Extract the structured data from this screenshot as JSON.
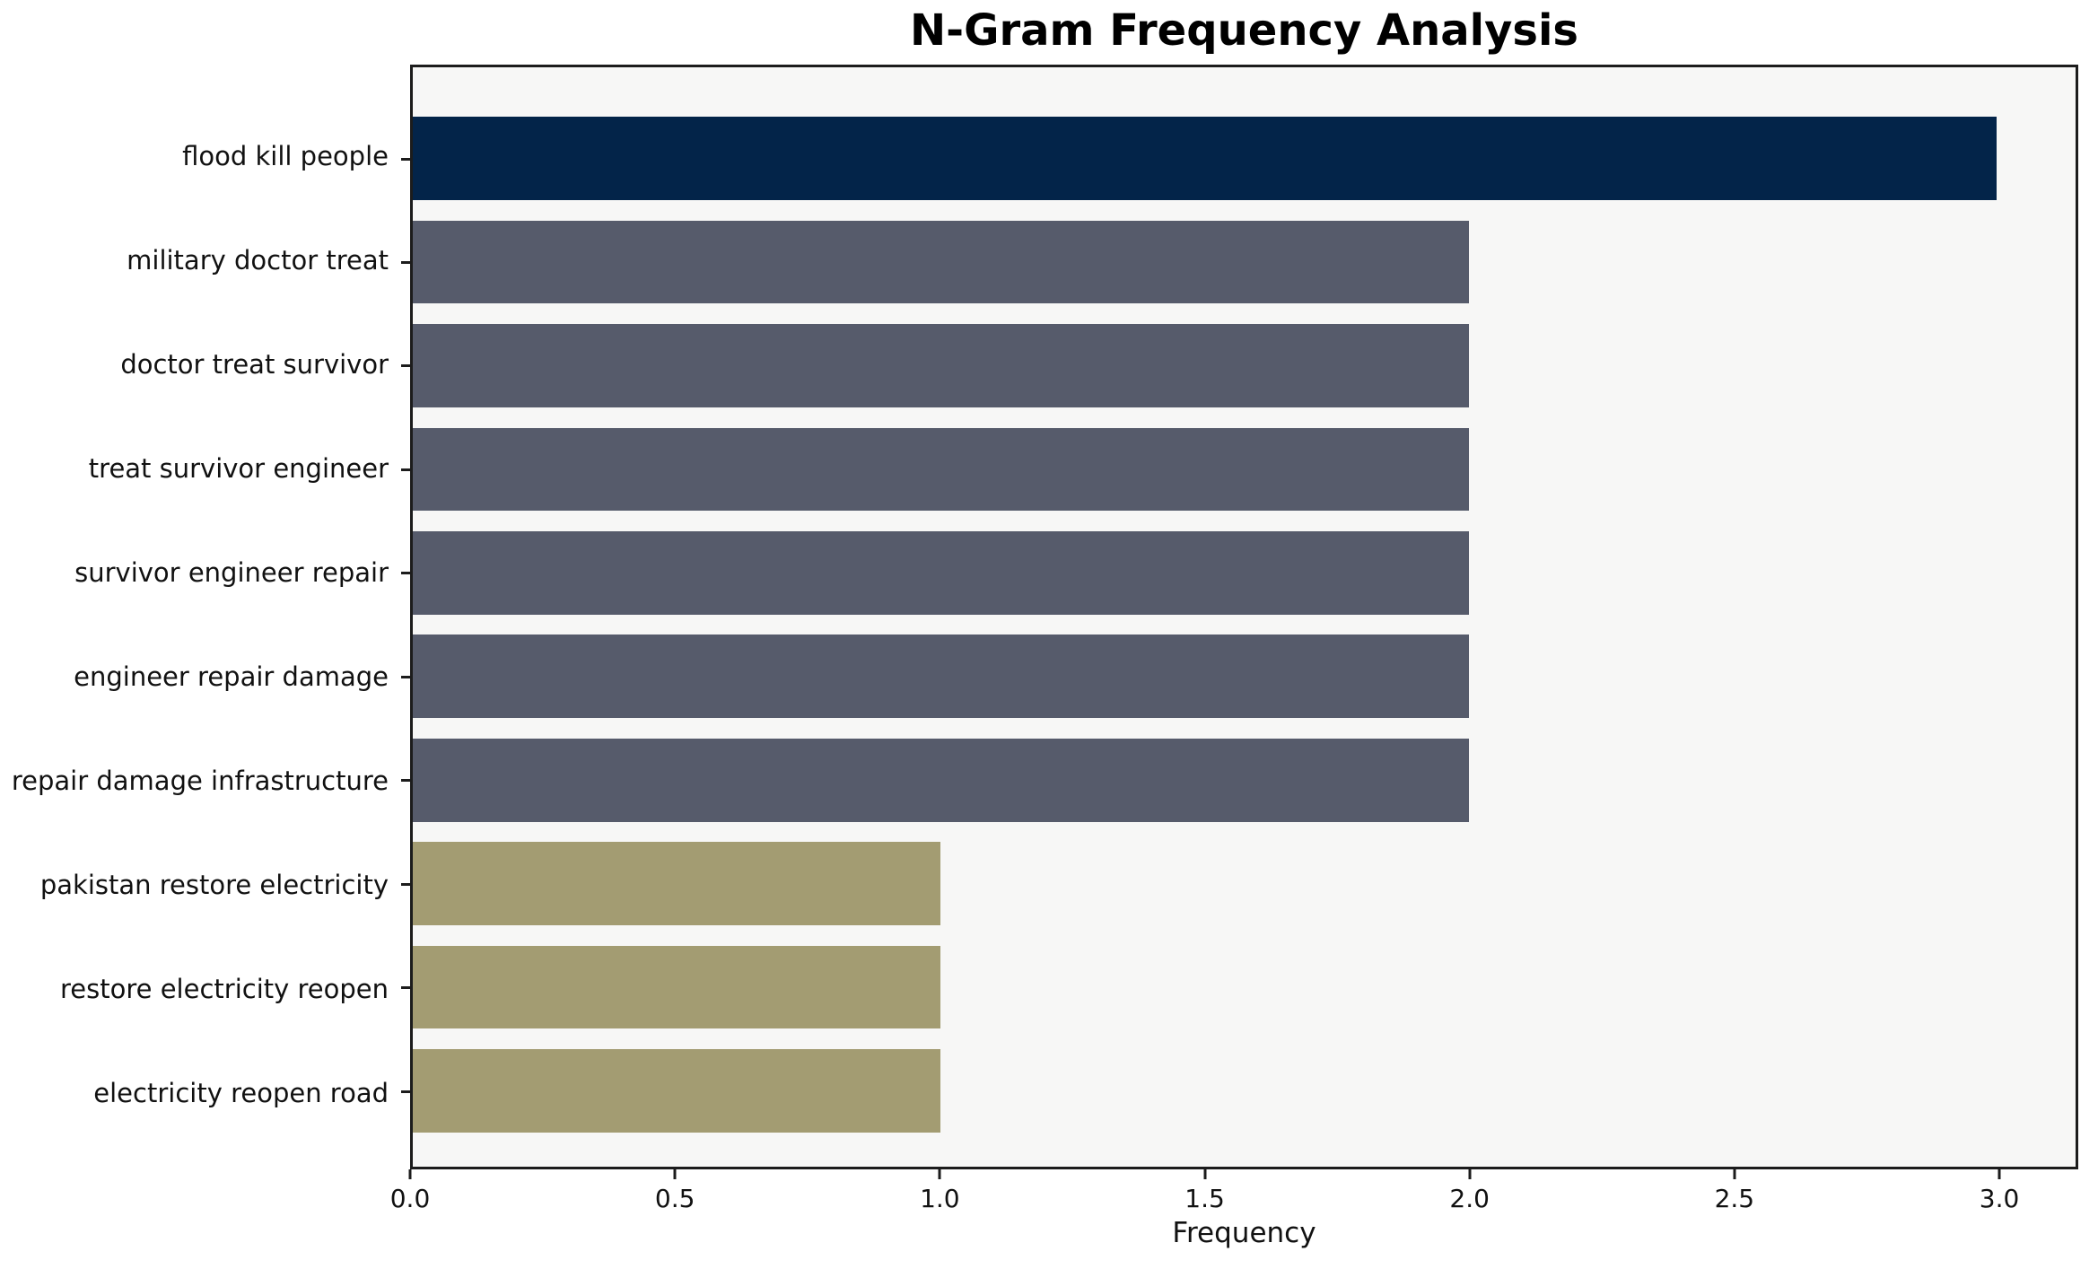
{
  "chart_data": {
    "type": "bar",
    "orientation": "horizontal",
    "title": "N-Gram Frequency Analysis",
    "xlabel": "Frequency",
    "ylabel": "",
    "categories": [
      "flood kill people",
      "military doctor treat",
      "doctor treat survivor",
      "treat survivor engineer",
      "survivor engineer repair",
      "engineer repair damage",
      "repair damage infrastructure",
      "pakistan restore electricity",
      "restore electricity reopen",
      "electricity reopen road"
    ],
    "values": [
      3,
      2,
      2,
      2,
      2,
      2,
      2,
      1,
      1,
      1
    ],
    "bar_colors": [
      "#032449",
      "#565b6b",
      "#565b6b",
      "#565b6b",
      "#565b6b",
      "#565b6b",
      "#565b6b",
      "#a39c72",
      "#a39c72",
      "#a39c72"
    ],
    "x_ticks": [
      "0.0",
      "0.5",
      "1.0",
      "1.5",
      "2.0",
      "2.5",
      "3.0"
    ],
    "x_tick_values": [
      0,
      0.5,
      1,
      1.5,
      2,
      2.5,
      3
    ],
    "xlim": [
      0,
      3.149
    ],
    "grid": false,
    "legend": "none",
    "colors": {
      "highest_bar": "#032449",
      "mid_bars": "#565b6b",
      "low_bars": "#a39c72",
      "plot_background": "#f7f7f6",
      "figure_background": "#ffffff",
      "spine": "#1c1c1c"
    }
  }
}
